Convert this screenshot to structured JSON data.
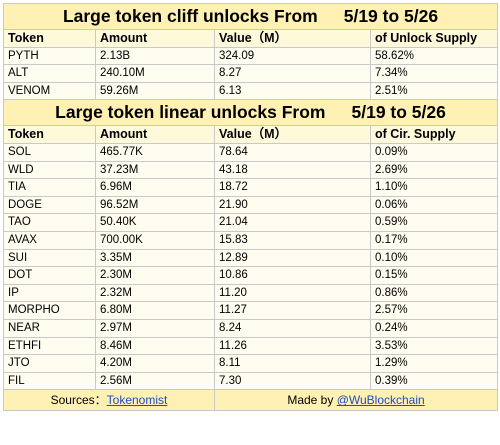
{
  "cliff": {
    "title_left": "Large token cliff unlocks From",
    "title_range": "5/19 to 5/26",
    "headers": [
      "Token",
      "Amount",
      "Value（M）",
      "of Unlock Supply"
    ],
    "rows": [
      [
        "PYTH",
        "2.13B",
        "324.09",
        "58.62%"
      ],
      [
        "ALT",
        "240.10M",
        "8.27",
        "7.34%"
      ],
      [
        "VENOM",
        "59.26M",
        "6.13",
        "2.51%"
      ]
    ]
  },
  "linear": {
    "title_left": "Large token linear unlocks From",
    "title_range": "5/19 to 5/26",
    "headers": [
      "Token",
      "Amount",
      "Value（M）",
      "of Cir. Supply"
    ],
    "rows": [
      [
        "SOL",
        "465.77K",
        "78.64",
        "0.09%"
      ],
      [
        "WLD",
        "37.23M",
        "43.18",
        "2.69%"
      ],
      [
        "TIA",
        "6.96M",
        "18.72",
        "1.10%"
      ],
      [
        "DOGE",
        "96.52M",
        "21.90",
        "0.06%"
      ],
      [
        "TAO",
        "50.40K",
        "21.04",
        "0.59%"
      ],
      [
        "AVAX",
        "700.00K",
        "15.83",
        "0.17%"
      ],
      [
        "SUI",
        "3.35M",
        "12.89",
        "0.10%"
      ],
      [
        "DOT",
        "2.30M",
        "10.86",
        "0.15%"
      ],
      [
        "IP",
        "2.32M",
        "11.20",
        "0.86%"
      ],
      [
        "MORPHO",
        "6.80M",
        "11.27",
        "2.57%"
      ],
      [
        "NEAR",
        "2.97M",
        "8.24",
        "0.24%"
      ],
      [
        "ETHFI",
        "8.46M",
        "11.26",
        "3.53%"
      ],
      [
        "JTO",
        "4.20M",
        "8.11",
        "1.29%"
      ],
      [
        "FIL",
        "2.56M",
        "7.30",
        "0.39%"
      ]
    ]
  },
  "footer": {
    "sources_label": "Sources：",
    "sources_link": "Tokenomist",
    "made_by_label": "Made by ",
    "made_by_link": "@WuBlockchain"
  },
  "colors": {
    "title_bg": "#fff0b3",
    "header_bg": "#fff9db",
    "row_bg": "#fffdf0",
    "link": "#1a4fc4"
  }
}
